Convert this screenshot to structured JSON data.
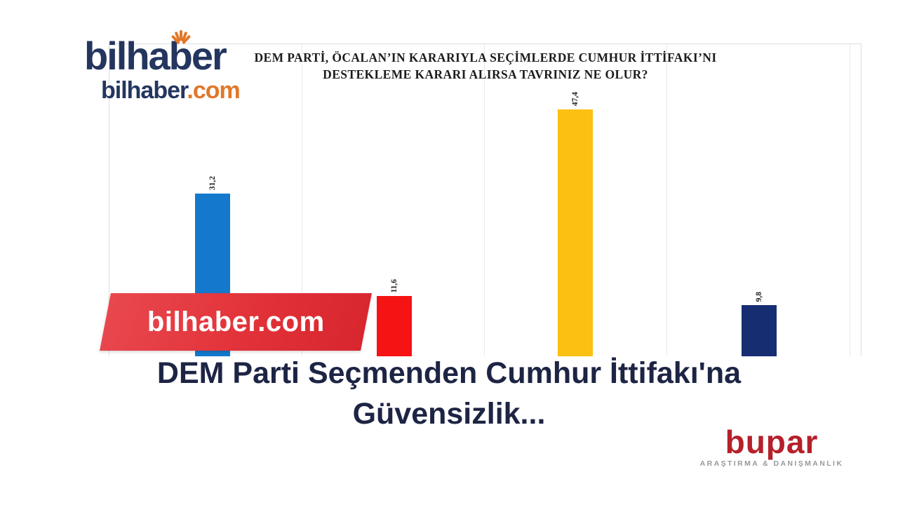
{
  "site_logo": {
    "wordmark": "bilhaber",
    "domain_name": "bilhaber",
    "domain_tld": ".com"
  },
  "ribbon": {
    "text": "bilhaber.com"
  },
  "headline": {
    "line1": "DEM Parti Seçmenden Cumhur İttifakı'na",
    "line2": "Güvensizlik..."
  },
  "source_logo": {
    "name": "bupar",
    "tagline": "ARAŞTIRMA & DANIŞMANLIK"
  },
  "chart_data": {
    "type": "bar",
    "title_line1": "DEM PARTİ, ÖCALAN’IN KARARIYLA SEÇİMLERDE CUMHUR İTTİFAKI’NI",
    "title_line2": "DESTEKLEME KARARI ALIRSA TAVRINIZ NE OLUR?",
    "values": [
      31.2,
      11.6,
      47.4,
      9.8
    ],
    "value_labels": [
      "31,2",
      "11,6",
      "47,4",
      "9,8"
    ],
    "colors": [
      "#1479cc",
      "#f51313",
      "#fcc013",
      "#162d72"
    ],
    "ylim": [
      0,
      60
    ],
    "grid": "vertical column separators",
    "legend": "none",
    "category_labels_visible": false
  },
  "ui_colors": {
    "logo_navy": "#24365f",
    "logo_orange": "#e0782a",
    "ribbon_red": "#e23239",
    "headline_navy": "#1d2444",
    "bupar_red": "#b5202a",
    "tagline_gray": "#97999d"
  }
}
